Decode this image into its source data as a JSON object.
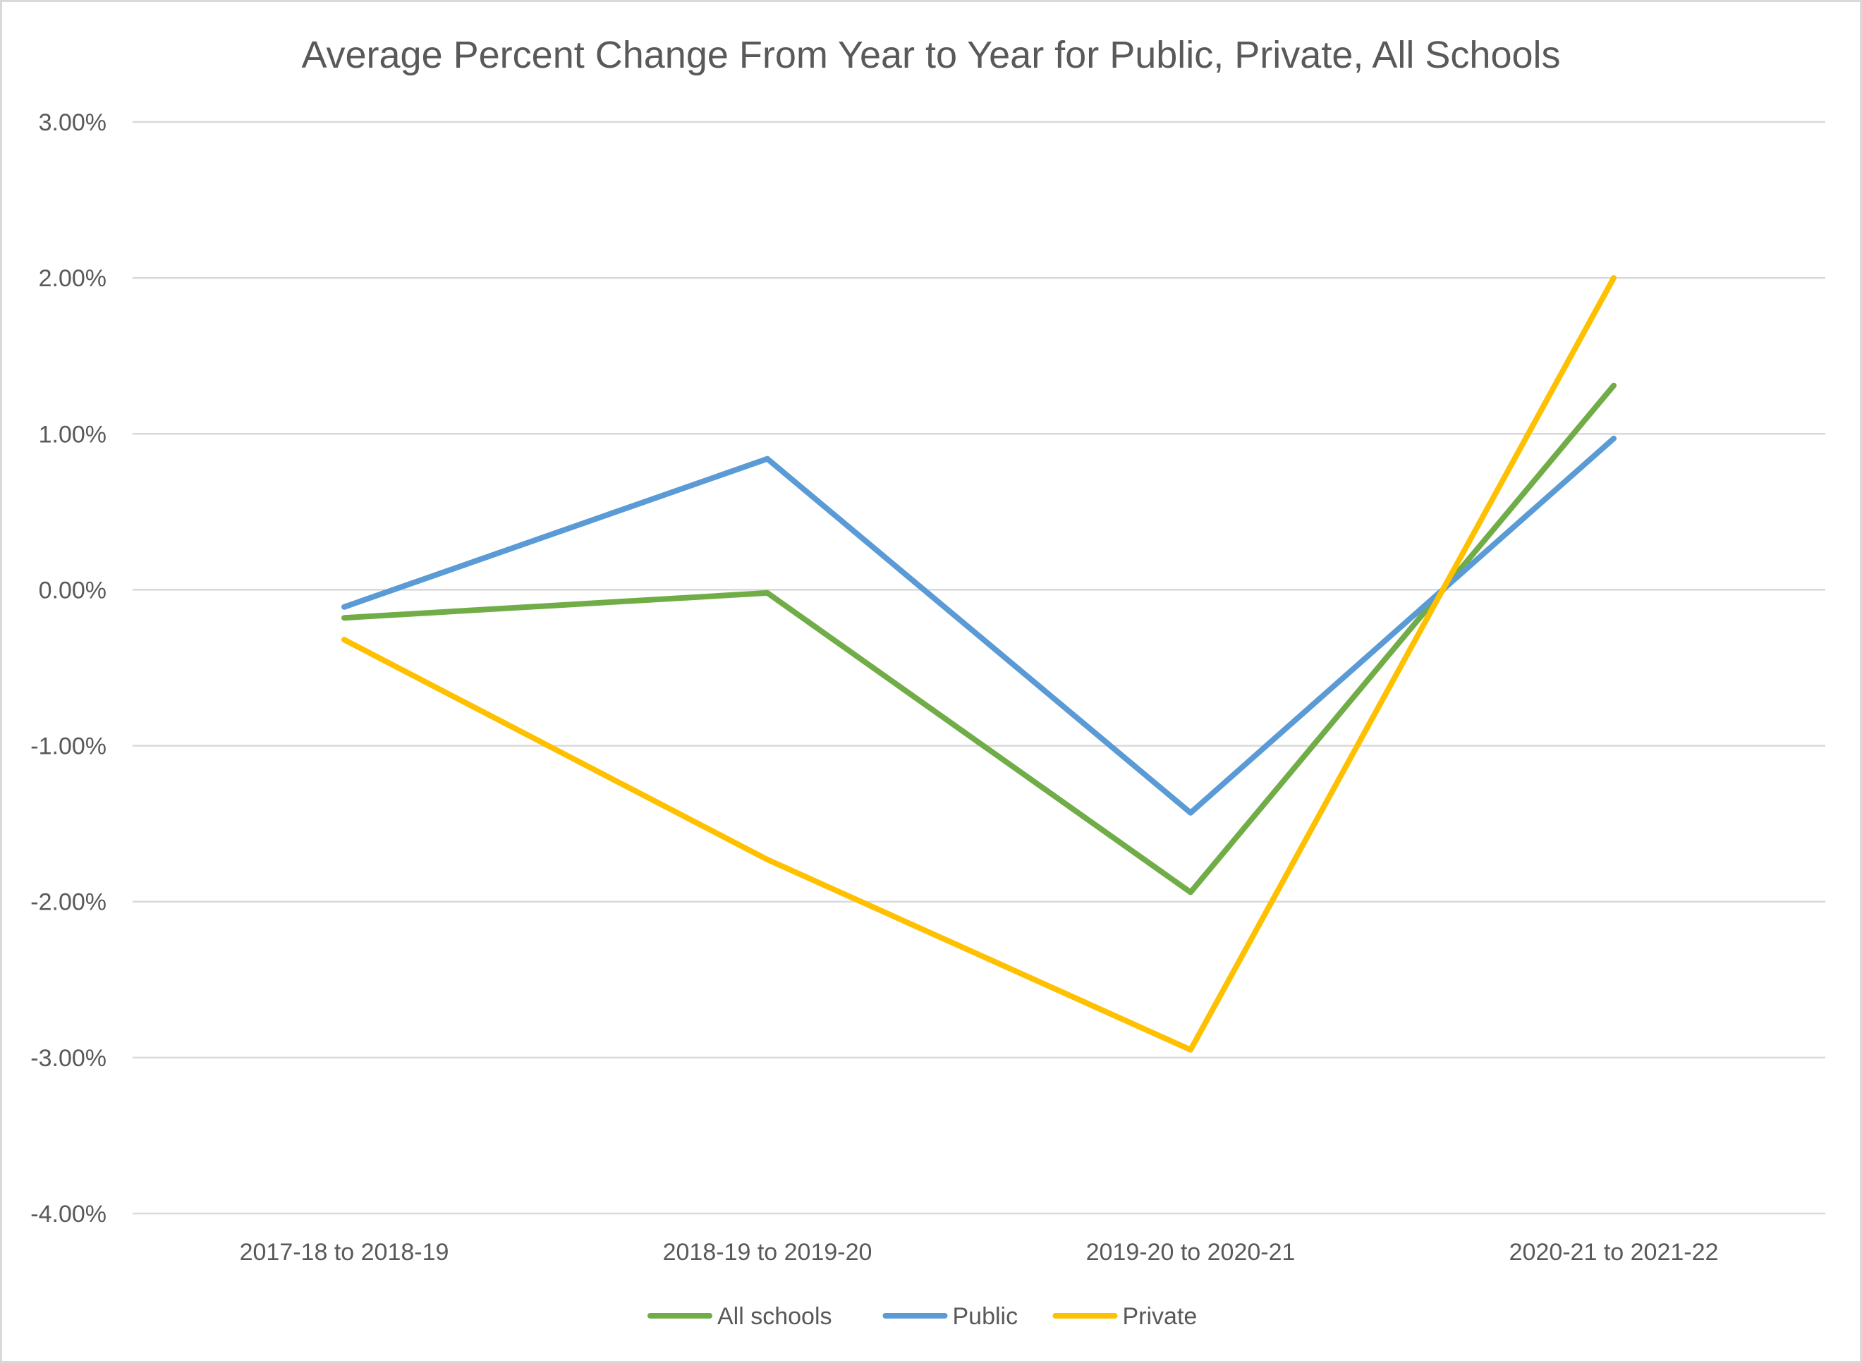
{
  "chart_data": {
    "type": "line",
    "title": "Average Percent Change From Year to Year for Public, Private, All Schools",
    "xlabel": "",
    "ylabel": "",
    "categories": [
      "2017-18 to 2018-19",
      "2018-19 to 2019-20",
      "2019-20 to 2020-21",
      "2020-21 to 2021-22"
    ],
    "ylim": [
      -4,
      3
    ],
    "y_ticks": [
      3,
      2,
      1,
      0,
      -1,
      -2,
      -3,
      -4
    ],
    "y_tick_labels": [
      "3.00%",
      "2.00%",
      "1.00%",
      "0.00%",
      "-1.00%",
      "-2.00%",
      "-3.00%",
      "-4.00%"
    ],
    "grid": true,
    "legend_position": "bottom",
    "series": [
      {
        "name": "All schools",
        "color": "#70ad47",
        "values": [
          -0.18,
          -0.02,
          -1.94,
          1.31
        ]
      },
      {
        "name": "Public",
        "color": "#5b9bd5",
        "values": [
          -0.11,
          0.84,
          -1.43,
          0.97
        ]
      },
      {
        "name": "Private",
        "color": "#ffc000",
        "values": [
          -0.32,
          -1.73,
          -2.95,
          2.0
        ]
      }
    ]
  }
}
